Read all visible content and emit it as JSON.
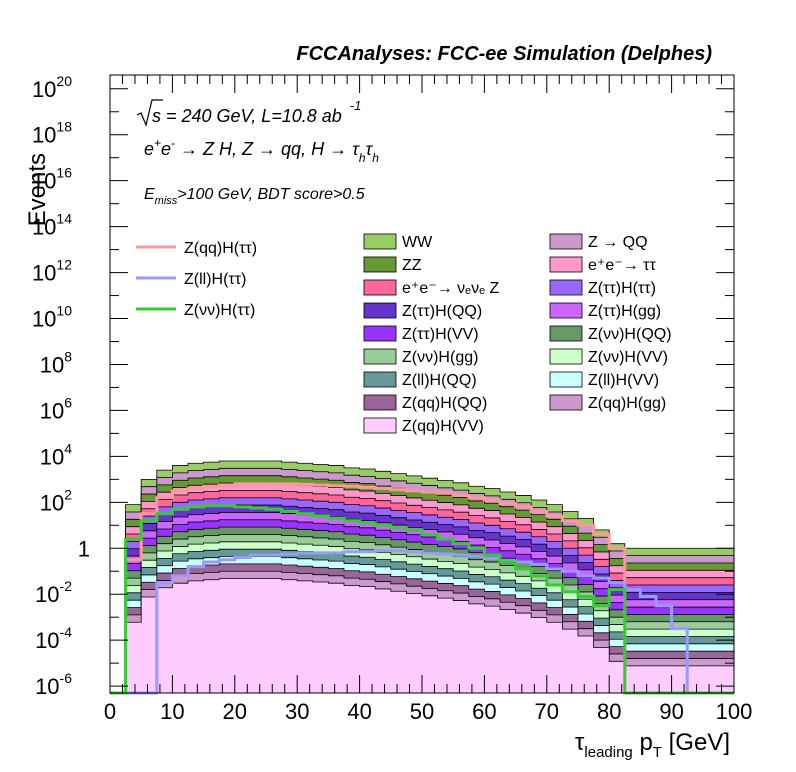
{
  "chart_data": {
    "type": "area",
    "title": "FCCAnalyses: FCC-ee Simulation (Delphes)",
    "ylabel": "Events",
    "xlabel_main": "τ",
    "xlabel_sub1": "leading",
    "xlabel_mid": " p",
    "xlabel_sub2": "T",
    "xlabel_unit": " [GeV]",
    "annotations": {
      "line1_root": "s",
      "line1_text": " = 240 GeV, L=10.8 ab",
      "line1_sup": "-1",
      "line2_a": "e",
      "line2_sup1": "+",
      "line2_b": "e",
      "line2_sup2": "-",
      "line2_c": " → Z H, Z  → qq, H  →  τ",
      "line2_sub1": "h",
      "line2_d": "τ",
      "line2_sub2": "h",
      "line3_a": "E",
      "line3_sub": "miss",
      "line3_b": ">100 GeV, BDT score>0.5"
    },
    "xlim": [
      0,
      100
    ],
    "ylim_log10": [
      -6.3,
      20.6
    ],
    "yscale": "log",
    "x_ticks": [
      "0",
      "10",
      "20",
      "30",
      "40",
      "50",
      "60",
      "70",
      "80",
      "90",
      "100"
    ],
    "y_ticks": [
      {
        "base": "10",
        "exp": "20",
        "log": 20
      },
      {
        "base": "10",
        "exp": "18",
        "log": 18
      },
      {
        "base": "10",
        "exp": "16",
        "log": 16
      },
      {
        "base": "10",
        "exp": "14",
        "log": 14
      },
      {
        "base": "10",
        "exp": "12",
        "log": 12
      },
      {
        "base": "10",
        "exp": "10",
        "log": 10
      },
      {
        "base": "10",
        "exp": "8",
        "log": 8
      },
      {
        "base": "10",
        "exp": "6",
        "log": 6
      },
      {
        "base": "10",
        "exp": "4",
        "log": 4
      },
      {
        "base": "10",
        "exp": "2",
        "log": 2
      },
      {
        "base": "1",
        "exp": "",
        "log": 0
      },
      {
        "base": "10",
        "exp": "-2",
        "log": -2
      },
      {
        "base": "10",
        "exp": "-4",
        "log": -4
      },
      {
        "base": "10",
        "exp": "-6",
        "log": -6
      }
    ],
    "bin_edges_step": 2.5,
    "stack_top_log10": [
      [
        -6.3,
        1.9,
        3.0,
        3.4,
        3.6,
        3.7,
        3.75,
        3.8,
        3.8,
        3.8,
        3.8,
        3.75,
        3.7,
        3.65,
        3.6,
        3.5,
        3.45,
        3.35,
        3.25,
        3.15,
        3.05,
        2.95,
        2.85,
        2.7,
        2.6,
        2.45,
        2.3,
        2.1,
        1.9,
        1.6,
        1.3,
        0.8,
        0.2,
        0.0,
        0.0,
        0.0,
        0.0,
        0.0,
        0.0,
        0.0
      ]
    ],
    "signals": [
      {
        "name": "Z(qq)H(ττ)",
        "color": "#ff9999",
        "log10": [
          -6.3,
          -0.5,
          1.5,
          2.2,
          2.5,
          2.6,
          2.7,
          2.75,
          2.8,
          2.8,
          2.8,
          2.8,
          2.78,
          2.75,
          2.72,
          2.7,
          2.65,
          2.6,
          2.55,
          2.5,
          2.45,
          2.4,
          2.3,
          2.2,
          2.1,
          1.95,
          1.8,
          1.6,
          1.4,
          1.2,
          1.0,
          0.6,
          0.0,
          -6.3,
          -6.3,
          -6.3,
          -6.3,
          -6.3,
          -6.3,
          -6.3
        ]
      },
      {
        "name": "Z(ll)H(ττ)",
        "color": "#9999ff",
        "log10": [
          -6.3,
          -6.3,
          -6.3,
          -1.5,
          -1.2,
          -0.8,
          -0.6,
          -0.5,
          -0.4,
          -0.3,
          -0.3,
          -0.25,
          -0.2,
          -0.2,
          -0.2,
          -0.15,
          -0.15,
          -0.1,
          -0.1,
          -0.15,
          -0.2,
          -0.25,
          -0.3,
          -0.35,
          -0.45,
          -0.55,
          -0.6,
          -0.7,
          -0.9,
          -1.0,
          -1.2,
          -1.3,
          -1.5,
          -1.8,
          -2.1,
          -2.5,
          -3.5,
          -6.3,
          -6.3,
          -6.3
        ]
      },
      {
        "name": "Z(νν)H(ττ)",
        "color": "#33cc33",
        "log10": [
          -6.3,
          0.4,
          1.2,
          1.5,
          1.7,
          1.8,
          1.85,
          1.85,
          1.8,
          1.75,
          1.7,
          1.6,
          1.5,
          1.4,
          1.3,
          1.2,
          1.1,
          1.0,
          0.9,
          0.8,
          0.6,
          0.4,
          0.2,
          0.0,
          -0.3,
          -0.6,
          -0.9,
          -1.2,
          -1.6,
          -1.9,
          -2.1,
          -2.5,
          -1.8,
          -6.3,
          -6.3,
          -6.3,
          -6.3,
          -6.3,
          -6.3,
          -6.3
        ]
      }
    ],
    "legend_lines": [
      {
        "name": "Z(qq)H(ττ)",
        "color": "#ff9999"
      },
      {
        "name": "Z(ll)H(ττ)",
        "color": "#9999ff"
      },
      {
        "name": "Z(νν)H(ττ)",
        "color": "#33cc33"
      }
    ],
    "legend_fills": [
      {
        "name": "WW",
        "color": "#99cc66"
      },
      {
        "name": "Z → QQ",
        "color": "#cc99cc"
      },
      {
        "name": "ZZ",
        "color": "#669933"
      },
      {
        "name": "e⁺e⁻→ ττ",
        "color": "#ff99cc"
      },
      {
        "name": "e⁺e⁻→ νₑνₑ Z",
        "color": "#ff6699"
      },
      {
        "name": "Z(ττ)H(ττ)",
        "color": "#9966ff"
      },
      {
        "name": "Z(ττ)H(QQ)",
        "color": "#6633cc"
      },
      {
        "name": "Z(ττ)H(gg)",
        "color": "#cc66ff"
      },
      {
        "name": "Z(ττ)H(VV)",
        "color": "#9933ff"
      },
      {
        "name": "Z(νν)H(QQ)",
        "color": "#669966"
      },
      {
        "name": "Z(νν)H(gg)",
        "color": "#99cc99"
      },
      {
        "name": "Z(νν)H(VV)",
        "color": "#ccffcc"
      },
      {
        "name": "Z(ll)H(QQ)",
        "color": "#669999"
      },
      {
        "name": "Z(ll)H(VV)",
        "color": "#ccffff"
      },
      {
        "name": "Z(qq)H(QQ)",
        "color": "#996699"
      },
      {
        "name": "Z(qq)H(gg)",
        "color": "#cc99cc"
      },
      {
        "name": "Z(qq)H(VV)",
        "color": "#ffccff"
      }
    ]
  }
}
